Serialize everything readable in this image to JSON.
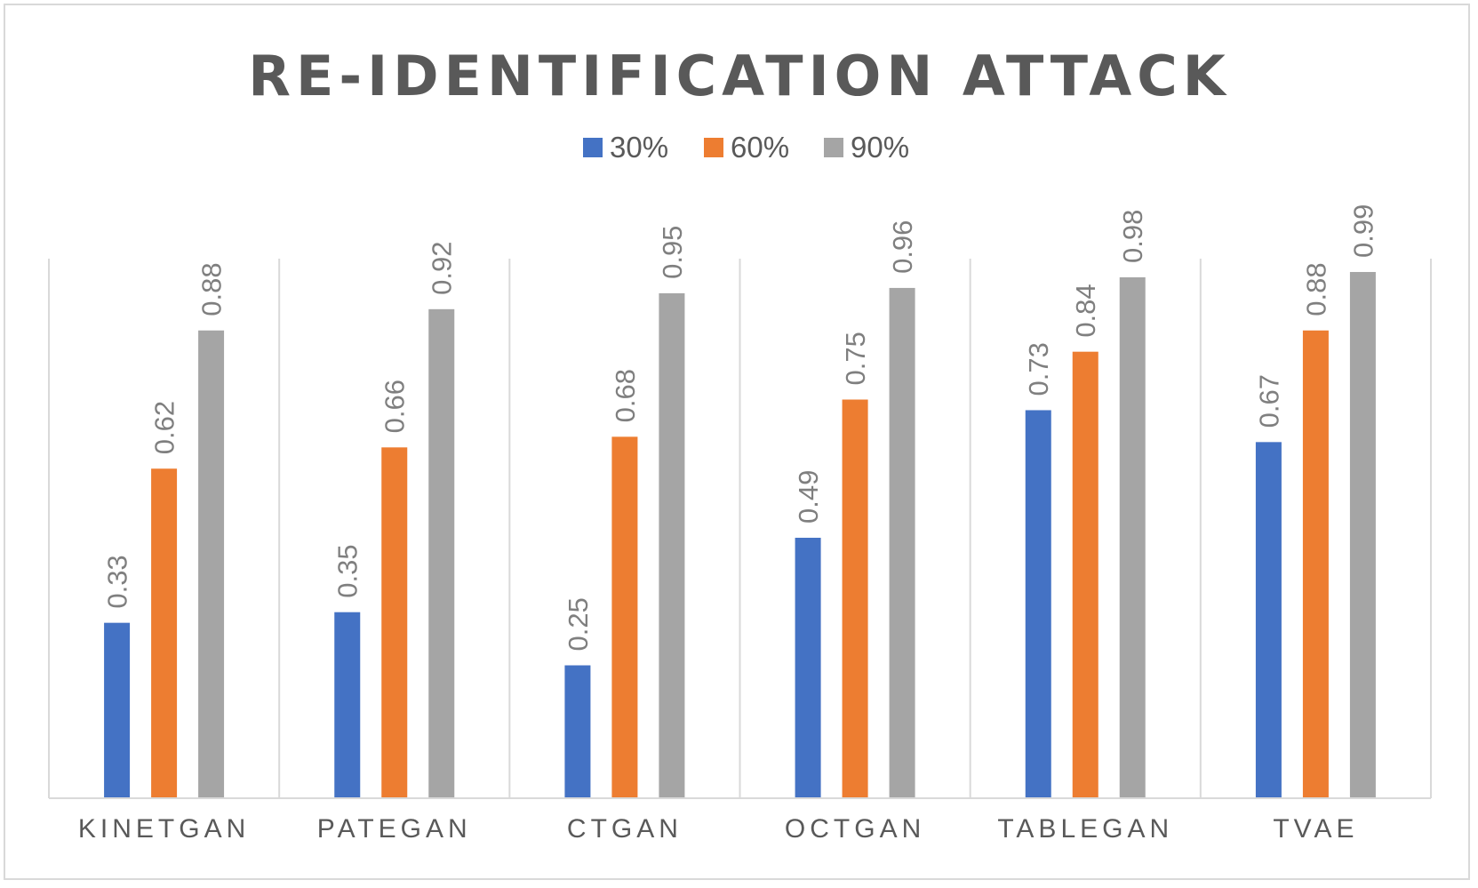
{
  "chart_data": {
    "type": "bar",
    "title": "RE-IDENTIFICATION ATTACK",
    "xlabel": "",
    "ylabel": "",
    "ylim": [
      0,
      1
    ],
    "grid": "vertical category separators",
    "legend": "top-center",
    "categories": [
      "KINETGAN",
      "PATEGAN",
      "CTGAN",
      "OCTGAN",
      "TABLEGAN",
      "TVAE"
    ],
    "series": [
      {
        "name": "30%",
        "color": "#4472c4",
        "values": [
          0.33,
          0.35,
          0.25,
          0.49,
          0.73,
          0.67
        ]
      },
      {
        "name": "60%",
        "color": "#ed7d31",
        "values": [
          0.62,
          0.66,
          0.68,
          0.75,
          0.84,
          0.88
        ]
      },
      {
        "name": "90%",
        "color": "#a5a5a5",
        "values": [
          0.88,
          0.92,
          0.95,
          0.96,
          0.98,
          0.99
        ]
      }
    ],
    "data_labels": [
      [
        "0.33",
        "0.35",
        "0.25",
        "0.49",
        "0.73",
        "0.67"
      ],
      [
        "0.62",
        "0.66",
        "0.68",
        "0.75",
        "0.84",
        "0.88"
      ],
      [
        "0.88",
        "0.92",
        "0.95",
        "0.96",
        "0.98",
        "0.99"
      ]
    ]
  }
}
